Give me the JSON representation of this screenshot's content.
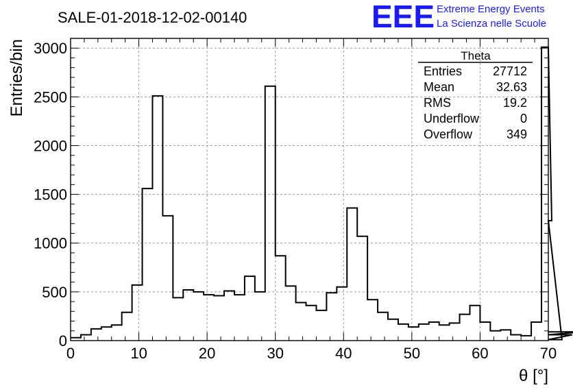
{
  "title": "SALE-01-2018-12-02-00140",
  "logo": {
    "mark": "EEE",
    "line1": "Extreme Energy Events",
    "line2": "La Scienza nelle Scuole",
    "color": "#1a1aff"
  },
  "stats_box": {
    "title": "Theta",
    "rows": [
      {
        "label": "Entries",
        "value": "27712"
      },
      {
        "label": "Mean",
        "value": "32.63"
      },
      {
        "label": "RMS",
        "value": "19.2"
      },
      {
        "label": "Underflow",
        "value": "0"
      },
      {
        "label": "Overflow",
        "value": "349"
      }
    ]
  },
  "chart_data": {
    "type": "bar",
    "histogram": true,
    "xlabel": "θ [°]",
    "ylabel": "Entries/bin",
    "xlim": [
      0,
      70
    ],
    "ylim": [
      0,
      3100
    ],
    "bin_width": 1.5,
    "x_ticks": [
      0,
      10,
      20,
      30,
      40,
      50,
      60,
      70
    ],
    "y_ticks": [
      0,
      500,
      1000,
      1500,
      2000,
      2500,
      3000
    ],
    "grid": true,
    "bin_edges_start": 0,
    "values": [
      30,
      60,
      120,
      140,
      160,
      290,
      570,
      1560,
      2510,
      1280,
      440,
      520,
      500,
      470,
      460,
      510,
      470,
      660,
      500,
      2610,
      870,
      560,
      390,
      360,
      310,
      490,
      550,
      1360,
      1070,
      420,
      290,
      220,
      170,
      140,
      170,
      190,
      160,
      180,
      270,
      360,
      190,
      100,
      110,
      60,
      50,
      190,
      3010,
      1230,
      10,
      60,
      90
    ]
  },
  "colors": {
    "line": "#000000",
    "grid": "#9a9a9a",
    "background": "#ffffff"
  }
}
